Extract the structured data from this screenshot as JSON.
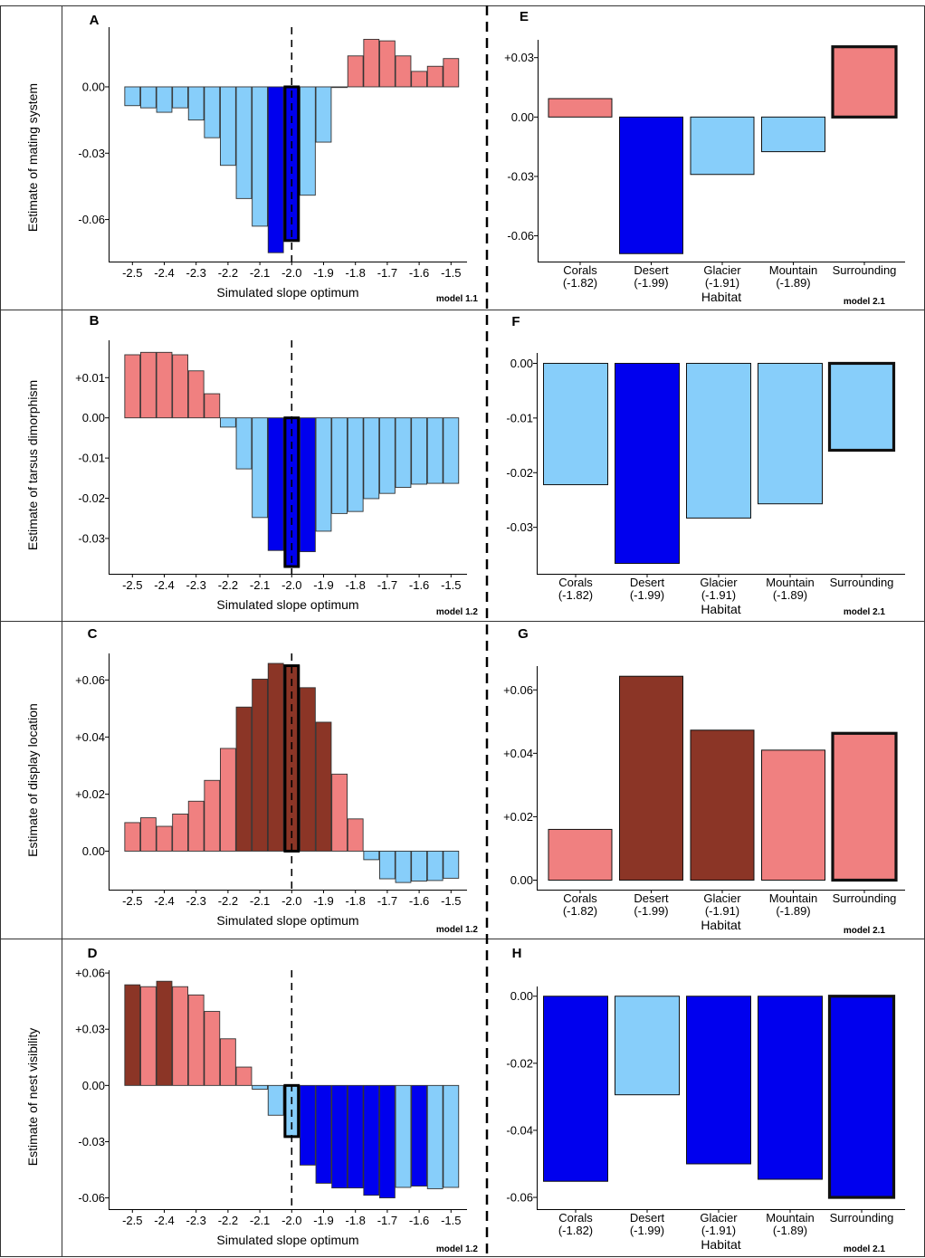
{
  "colors": {
    "salmon": "#F08080",
    "dark_red": "#8B3526",
    "light_blue": "#87CEFA",
    "blue": "#0000EE"
  },
  "rows": [
    {
      "ylabel": "Estimate of mating system"
    },
    {
      "ylabel": "Estimate of tarsus dimorphism"
    },
    {
      "ylabel": "Estimate of display location"
    },
    {
      "ylabel": "Estimate of nest visibility"
    }
  ],
  "chart_data": [
    {
      "type": "bar",
      "panel": "A",
      "model": "model 1.1",
      "xlabel": "Simulated slope optimum",
      "x_ticks": [
        "-2.5",
        "-2.4",
        "-2.3",
        "-2.2",
        "-2.1",
        "-2.0",
        "-1.9",
        "-1.8",
        "-1.7",
        "-1.6",
        "-1.5"
      ],
      "ylim": [
        -0.079,
        0.027
      ],
      "y_ticks": [
        {
          "v": 0.0,
          "label": "0.00"
        },
        {
          "v": -0.03,
          "label": "-0.03"
        },
        {
          "v": -0.06,
          "label": "-0.06"
        }
      ],
      "highlight_index": 10,
      "vline": -2.0,
      "values": [
        -0.0085,
        -0.0095,
        -0.0115,
        -0.0095,
        -0.015,
        -0.023,
        -0.0355,
        -0.0505,
        -0.063,
        -0.075,
        -0.0695,
        -0.049,
        -0.025,
        -0.0003,
        0.014,
        0.0215,
        0.0208,
        0.014,
        0.007,
        0.0093,
        0.0128
      ],
      "colors": [
        "light_blue",
        "light_blue",
        "light_blue",
        "light_blue",
        "light_blue",
        "light_blue",
        "light_blue",
        "light_blue",
        "light_blue",
        "blue",
        "blue",
        "light_blue",
        "light_blue",
        "light_blue",
        "salmon",
        "salmon",
        "salmon",
        "salmon",
        "salmon",
        "salmon",
        "salmon"
      ]
    },
    {
      "type": "bar",
      "panel": "E",
      "model": "model 2.1",
      "xlabel": "Habitat",
      "categories": [
        {
          "name": "Corals",
          "sub": "(-1.82)"
        },
        {
          "name": "Desert",
          "sub": "(-1.99)"
        },
        {
          "name": "Glacier",
          "sub": "(-1.91)"
        },
        {
          "name": "Mountain",
          "sub": "(-1.89)"
        },
        {
          "name": "Surrounding",
          "sub": ""
        }
      ],
      "ylim": [
        -0.073,
        0.039
      ],
      "y_ticks": [
        {
          "v": 0.03,
          "label": "+0.03"
        },
        {
          "v": 0.0,
          "label": "0.00"
        },
        {
          "v": -0.03,
          "label": "-0.03"
        },
        {
          "v": -0.06,
          "label": "-0.06"
        }
      ],
      "highlight_index": 4,
      "values": [
        0.0093,
        -0.069,
        -0.029,
        -0.0175,
        0.0355
      ],
      "colors": [
        "salmon",
        "blue",
        "light_blue",
        "light_blue",
        "salmon"
      ]
    },
    {
      "type": "bar",
      "panel": "B",
      "model": "model 1.2",
      "xlabel": "Simulated slope optimum",
      "x_ticks": [
        "-2.5",
        "-2.4",
        "-2.3",
        "-2.2",
        "-2.1",
        "-2.0",
        "-1.9",
        "-1.8",
        "-1.7",
        "-1.6",
        "-1.5"
      ],
      "ylim": [
        -0.0388,
        0.0193
      ],
      "y_ticks": [
        {
          "v": 0.01,
          "label": "+0.01"
        },
        {
          "v": 0.0,
          "label": "0.00"
        },
        {
          "v": -0.01,
          "label": "-0.01"
        },
        {
          "v": -0.02,
          "label": "-0.02"
        },
        {
          "v": -0.03,
          "label": "-0.03"
        }
      ],
      "highlight_index": 10,
      "vline": -2.0,
      "values": [
        0.0157,
        0.0163,
        0.0163,
        0.0157,
        0.0117,
        0.006,
        -0.0023,
        -0.0127,
        -0.0248,
        -0.033,
        -0.037,
        -0.0333,
        -0.0282,
        -0.0238,
        -0.0233,
        -0.0201,
        -0.0188,
        -0.0173,
        -0.0165,
        -0.0163,
        -0.0163
      ],
      "colors": [
        "salmon",
        "salmon",
        "salmon",
        "salmon",
        "salmon",
        "salmon",
        "light_blue",
        "light_blue",
        "light_blue",
        "blue",
        "blue",
        "blue",
        "light_blue",
        "light_blue",
        "light_blue",
        "light_blue",
        "light_blue",
        "light_blue",
        "light_blue",
        "light_blue",
        "light_blue"
      ]
    },
    {
      "type": "bar",
      "panel": "F",
      "model": "model 2.1",
      "xlabel": "Habitat",
      "categories": [
        {
          "name": "Corals",
          "sub": "(-1.82)"
        },
        {
          "name": "Desert",
          "sub": "(-1.99)"
        },
        {
          "name": "Glacier",
          "sub": "(-1.91)"
        },
        {
          "name": "Mountain",
          "sub": "(-1.89)"
        },
        {
          "name": "Surrounding",
          "sub": ""
        }
      ],
      "ylim": [
        -0.0385,
        0.0019
      ],
      "y_ticks": [
        {
          "v": 0.0,
          "label": "0.00"
        },
        {
          "v": -0.01,
          "label": "-0.01"
        },
        {
          "v": -0.02,
          "label": "-0.02"
        },
        {
          "v": -0.03,
          "label": "-0.03"
        }
      ],
      "highlight_index": 4,
      "values": [
        -0.0222,
        -0.0366,
        -0.0283,
        -0.0257,
        -0.0159
      ],
      "colors": [
        "light_blue",
        "blue",
        "light_blue",
        "light_blue",
        "light_blue"
      ]
    },
    {
      "type": "bar",
      "panel": "C",
      "model": "model 1.2",
      "xlabel": "Simulated slope optimum",
      "x_ticks": [
        "-2.5",
        "-2.4",
        "-2.3",
        "-2.2",
        "-2.1",
        "-2.0",
        "-1.9",
        "-1.8",
        "-1.7",
        "-1.6",
        "-1.5"
      ],
      "ylim": [
        -0.0135,
        0.0693
      ],
      "y_ticks": [
        {
          "v": 0.06,
          "label": "+0.06"
        },
        {
          "v": 0.04,
          "label": "+0.04"
        },
        {
          "v": 0.02,
          "label": "+0.02"
        },
        {
          "v": 0.0,
          "label": "0.00"
        }
      ],
      "highlight_index": 10,
      "vline": -2.0,
      "values": [
        0.01,
        0.0117,
        0.0087,
        0.013,
        0.0175,
        0.0248,
        0.036,
        0.0505,
        0.0603,
        0.0658,
        0.065,
        0.0573,
        0.0452,
        0.027,
        0.0113,
        -0.003,
        -0.0097,
        -0.011,
        -0.0105,
        -0.0103,
        -0.0095
      ],
      "colors": [
        "salmon",
        "salmon",
        "salmon",
        "salmon",
        "salmon",
        "salmon",
        "salmon",
        "dark_red",
        "dark_red",
        "dark_red",
        "dark_red",
        "dark_red",
        "dark_red",
        "salmon",
        "salmon",
        "light_blue",
        "light_blue",
        "light_blue",
        "light_blue",
        "light_blue",
        "light_blue"
      ]
    },
    {
      "type": "bar",
      "panel": "G",
      "model": "model 2.1",
      "xlabel": "Habitat",
      "categories": [
        {
          "name": "Corals",
          "sub": "(-1.82)"
        },
        {
          "name": "Desert",
          "sub": "(-1.99)"
        },
        {
          "name": "Glacier",
          "sub": "(-1.91)"
        },
        {
          "name": "Mountain",
          "sub": "(-1.89)"
        },
        {
          "name": "Surrounding",
          "sub": ""
        }
      ],
      "ylim": [
        -0.003,
        0.0675
      ],
      "y_ticks": [
        {
          "v": 0.06,
          "label": "+0.06"
        },
        {
          "v": 0.04,
          "label": "+0.04"
        },
        {
          "v": 0.02,
          "label": "+0.02"
        },
        {
          "v": 0.0,
          "label": "0.00"
        }
      ],
      "highlight_index": 4,
      "values": [
        0.016,
        0.0643,
        0.0473,
        0.041,
        0.0463
      ],
      "colors": [
        "salmon",
        "dark_red",
        "dark_red",
        "salmon",
        "salmon"
      ]
    },
    {
      "type": "bar",
      "panel": "D",
      "model": "model 1.2",
      "xlabel": "Simulated slope optimum",
      "x_ticks": [
        "-2.5",
        "-2.4",
        "-2.3",
        "-2.2",
        "-2.1",
        "-2.0",
        "-1.9",
        "-1.8",
        "-1.7",
        "-1.6",
        "-1.5"
      ],
      "ylim": [
        -0.066,
        0.0615
      ],
      "y_ticks": [
        {
          "v": 0.06,
          "label": "+0.06"
        },
        {
          "v": 0.03,
          "label": "+0.03"
        },
        {
          "v": 0.0,
          "label": "0.00"
        },
        {
          "v": -0.03,
          "label": "-0.03"
        },
        {
          "v": -0.06,
          "label": "-0.06"
        }
      ],
      "highlight_index": 10,
      "vline": -2.0,
      "values": [
        0.0537,
        0.0527,
        0.0556,
        0.0527,
        0.0483,
        0.0395,
        0.0249,
        0.0098,
        -0.002,
        -0.0159,
        -0.0273,
        -0.0425,
        -0.0522,
        -0.0547,
        -0.0547,
        -0.0586,
        -0.06,
        -0.0544,
        -0.0537,
        -0.0551,
        -0.0544
      ],
      "colors": [
        "dark_red",
        "salmon",
        "dark_red",
        "salmon",
        "salmon",
        "salmon",
        "salmon",
        "salmon",
        "light_blue",
        "light_blue",
        "light_blue",
        "blue",
        "blue",
        "blue",
        "blue",
        "blue",
        "blue",
        "light_blue",
        "blue",
        "light_blue",
        "light_blue"
      ]
    },
    {
      "type": "bar",
      "panel": "H",
      "model": "model 2.1",
      "xlabel": "Habitat",
      "categories": [
        {
          "name": "Corals",
          "sub": "(-1.82)"
        },
        {
          "name": "Desert",
          "sub": "(-1.99)"
        },
        {
          "name": "Glacier",
          "sub": "(-1.91)"
        },
        {
          "name": "Mountain",
          "sub": "(-1.89)"
        },
        {
          "name": "Surrounding",
          "sub": ""
        }
      ],
      "ylim": [
        -0.0635,
        0.0029
      ],
      "y_ticks": [
        {
          "v": 0.0,
          "label": "0.00"
        },
        {
          "v": -0.02,
          "label": "-0.02"
        },
        {
          "v": -0.04,
          "label": "-0.04"
        },
        {
          "v": -0.06,
          "label": "-0.06"
        }
      ],
      "highlight_index": 4,
      "values": [
        -0.0552,
        -0.0294,
        -0.05,
        -0.0546,
        -0.06
      ],
      "colors": [
        "blue",
        "light_blue",
        "blue",
        "blue",
        "blue"
      ]
    }
  ]
}
